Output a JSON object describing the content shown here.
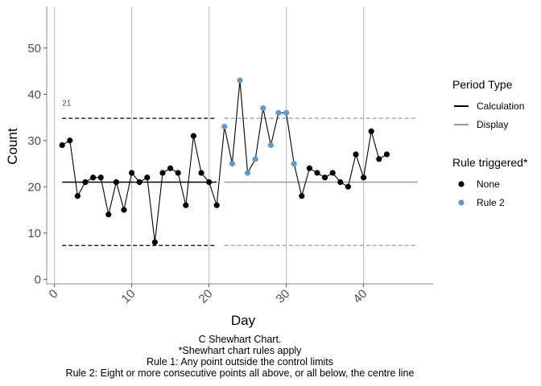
{
  "chart_data": {
    "type": "line",
    "subtype": "c-shewhart-control-chart",
    "xlabel": "Day",
    "ylabel": "Count",
    "xlim": [
      -1,
      49
    ],
    "ylim": [
      -1,
      59
    ],
    "x_ticks": [
      0,
      10,
      20,
      30,
      40
    ],
    "y_ticks": [
      0,
      10,
      20,
      30,
      40,
      50
    ],
    "grid": "vertical-major",
    "x": [
      1,
      2,
      3,
      4,
      5,
      6,
      7,
      8,
      9,
      10,
      11,
      12,
      13,
      14,
      15,
      16,
      17,
      18,
      19,
      20,
      21,
      22,
      23,
      24,
      25,
      26,
      27,
      28,
      29,
      30,
      31,
      32,
      33,
      34,
      35,
      36,
      37,
      38,
      39,
      40,
      41,
      42,
      43
    ],
    "values": [
      29,
      30,
      18,
      21,
      22,
      22,
      14,
      21,
      15,
      23,
      21,
      22,
      8,
      23,
      24,
      23,
      16,
      31,
      23,
      21,
      16,
      33,
      25,
      43,
      23,
      26,
      37,
      29,
      36,
      36,
      25,
      18,
      24,
      23,
      22,
      23,
      21,
      20,
      27,
      22,
      32,
      26,
      27
    ],
    "rule_triggered": [
      "None",
      "None",
      "None",
      "None",
      "None",
      "None",
      "None",
      "None",
      "None",
      "None",
      "None",
      "None",
      "None",
      "None",
      "None",
      "None",
      "None",
      "None",
      "None",
      "None",
      "None",
      "Rule 2",
      "Rule 2",
      "Rule 2",
      "Rule 2",
      "Rule 2",
      "Rule 2",
      "Rule 2",
      "Rule 2",
      "Rule 2",
      "Rule 2",
      "None",
      "None",
      "None",
      "None",
      "None",
      "None",
      "None",
      "None",
      "None",
      "None",
      "None",
      "None"
    ],
    "limits": {
      "calculation": {
        "x_start": 1,
        "x_end": 21,
        "centre": 21,
        "ucl": 34.8,
        "lcl": 7.3
      },
      "display": {
        "x_start": 22,
        "x_end": 47,
        "centre": 21,
        "ucl": 34.8,
        "lcl": 7.3
      }
    },
    "annotation": {
      "text": "21",
      "x": 1,
      "y": 37.5
    },
    "legend": {
      "position": "right",
      "period_type": {
        "title": "Period Type",
        "items": [
          {
            "label": "Calculation",
            "color": "#000000"
          },
          {
            "label": "Display",
            "color": "#999999"
          }
        ]
      },
      "rule_triggered": {
        "title": "Rule triggered*",
        "items": [
          {
            "label": "None",
            "color": "#000000"
          },
          {
            "label": "Rule 2",
            "color": "#5B9BD5"
          }
        ]
      }
    },
    "caption": [
      "C Shewhart Chart.",
      "*Shewhart chart rules apply",
      "Rule 1: Any point outside the control limits",
      "Rule 2: Eight or more consecutive points all above, or all below, the centre line"
    ]
  }
}
